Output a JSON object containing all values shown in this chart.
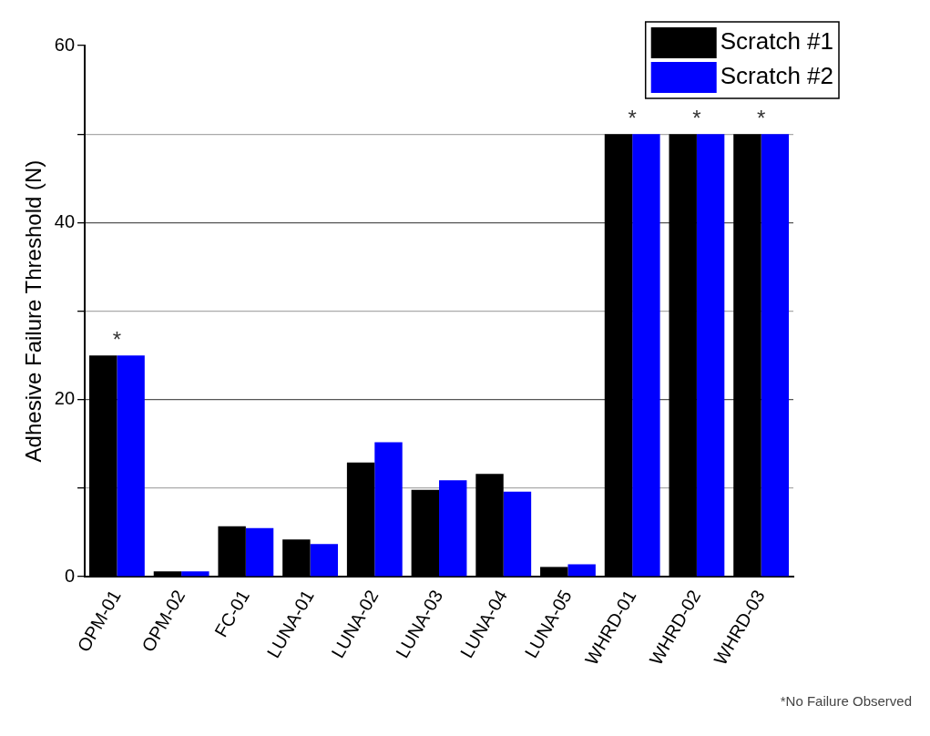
{
  "chart_data": {
    "type": "bar",
    "ylabel": "Adhesive Failure Threshold (N)",
    "categories": [
      "OPM-01",
      "OPM-02",
      "FC-01",
      "LUNA-01",
      "LUNA-02",
      "LUNA-03",
      "LUNA-04",
      "LUNA-05",
      "WHRD-01",
      "WHRD-02",
      "WHRD-03"
    ],
    "series": [
      {
        "name": "Scratch #1",
        "color": "#000000",
        "values": [
          25,
          0.6,
          5.7,
          4.2,
          12.9,
          9.8,
          11.6,
          1.1,
          50,
          50,
          50
        ]
      },
      {
        "name": "Scratch #2",
        "color": "#0000ff",
        "values": [
          25,
          0.6,
          5.5,
          3.7,
          15.2,
          10.9,
          9.6,
          1.4,
          50,
          50,
          50
        ]
      }
    ],
    "ylim": [
      0,
      60
    ],
    "yticks": [
      0,
      {
        "value": 10,
        "label": null
      },
      20,
      {
        "value": 30,
        "label": null
      },
      40,
      {
        "value": 50,
        "label": null
      },
      60
    ],
    "grid": "y",
    "legend": "top right",
    "annotations": [
      {
        "text": "*",
        "x": "OPM-01",
        "y": 25
      },
      {
        "text": "*",
        "x": "WHRD-01",
        "y": 50
      },
      {
        "text": "*",
        "x": "WHRD-02",
        "y": 50
      },
      {
        "text": "*",
        "x": "WHRD-03",
        "y": 50
      },
      "*No Failure Observed"
    ]
  }
}
